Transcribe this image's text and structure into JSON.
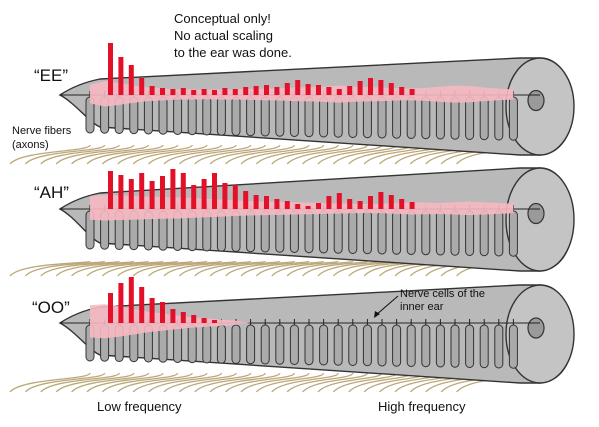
{
  "caption": {
    "line1": "Conceptual only!",
    "line2": "No actual scaling",
    "line3": "to the ear was done."
  },
  "annotations": {
    "nerve_fibers_line1": "Nerve fibers",
    "nerve_fibers_line2": "(axons)",
    "nerve_cells_line1": "Nerve cells of the",
    "nerve_cells_line2": "inner ear"
  },
  "axis": {
    "low": "Low frequency",
    "high": "High frequency"
  },
  "colors": {
    "tube": "#b9b9b9",
    "tube_dark": "#9a9a9a",
    "bar": "#e3102a",
    "envelope": "#f6b8c1",
    "fiber": "#bca77a",
    "cell": "#aaaaaa"
  },
  "panels": [
    {
      "vowel": "“EE”",
      "bars": [
        52,
        38,
        30,
        17,
        9,
        7,
        6,
        7,
        5,
        6,
        5,
        7,
        6,
        8,
        9,
        10,
        8,
        12,
        15,
        11,
        10,
        8,
        6,
        9,
        14,
        17,
        15,
        12,
        8,
        6
      ],
      "envelope": [
        0.55,
        0.75,
        0.65,
        0.5,
        0.4,
        0.35,
        0.3,
        0.3,
        0.28,
        0.3,
        0.3,
        0.32,
        0.34,
        0.36,
        0.4,
        0.42,
        0.45,
        0.5,
        0.45,
        0.42,
        0.4,
        0.36,
        0.35,
        0.38,
        0.45,
        0.5,
        0.48,
        0.4,
        0.34,
        0.3
      ]
    },
    {
      "vowel": "“AH”",
      "bars": [
        38,
        34,
        30,
        36,
        28,
        33,
        40,
        36,
        24,
        30,
        36,
        26,
        24,
        18,
        14,
        13,
        10,
        8,
        5,
        3,
        6,
        13,
        16,
        10,
        8,
        13,
        17,
        14,
        10,
        7
      ],
      "envelope": [
        0.7,
        0.75,
        0.72,
        0.7,
        0.66,
        0.64,
        0.62,
        0.58,
        0.54,
        0.5,
        0.46,
        0.42,
        0.4,
        0.38,
        0.36,
        0.34,
        0.32,
        0.3,
        0.28,
        0.27,
        0.28,
        0.32,
        0.36,
        0.34,
        0.33,
        0.36,
        0.4,
        0.36,
        0.32,
        0.28
      ]
    },
    {
      "vowel": "“OO”",
      "bars": [
        30,
        40,
        46,
        36,
        25,
        21,
        14,
        11,
        8,
        5,
        3,
        0,
        0,
        0,
        0,
        0,
        0,
        0,
        0,
        0,
        0,
        0,
        0,
        0,
        0,
        0,
        0,
        0,
        0,
        0
      ],
      "envelope": [
        0.95,
        1.0,
        0.9,
        0.75,
        0.6,
        0.5,
        0.4,
        0.3,
        0.25,
        0.18,
        0.12,
        0,
        0,
        0,
        0,
        0,
        0,
        0,
        0,
        0,
        0,
        0,
        0,
        0,
        0,
        0,
        0,
        0,
        0,
        0
      ]
    }
  ]
}
